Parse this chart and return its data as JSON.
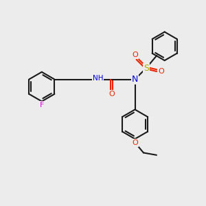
{
  "bg_color": "#ececec",
  "bond_color": "#1a1a1a",
  "F_color": "#dd00dd",
  "O_color": "#ee2200",
  "N_color": "#0000dd",
  "S_color": "#aaaa00",
  "lw": 1.5,
  "figsize": [
    3.0,
    3.0
  ],
  "dpi": 100,
  "xlim": [
    0,
    10
  ],
  "ylim": [
    0,
    10
  ]
}
